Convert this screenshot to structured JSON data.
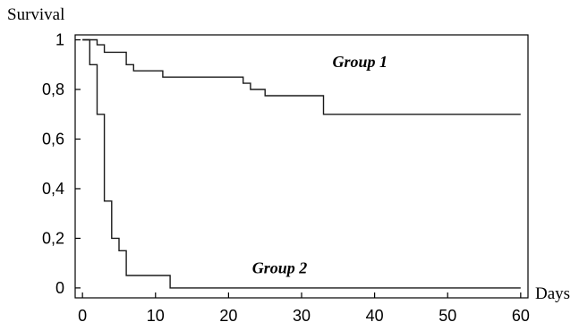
{
  "chart_data": {
    "type": "line",
    "step": true,
    "xlabel": "Days",
    "ylabel": "Survival",
    "xlim": [
      -1,
      61
    ],
    "ylim": [
      -0.04,
      1.02
    ],
    "xticks": [
      0,
      10,
      20,
      30,
      40,
      50,
      60
    ],
    "yticks": [
      0,
      0.2,
      0.4,
      0.6,
      0.8,
      1
    ],
    "ytick_labels": [
      "0",
      "0,2",
      "0,4",
      "0,6",
      "0,8",
      "1"
    ],
    "grid": false,
    "series": [
      {
        "name": "Group 1",
        "label_at": [
          38,
          0.89
        ],
        "x": [
          0,
          2,
          3,
          6,
          7,
          11,
          22,
          23,
          25,
          33,
          60
        ],
        "y": [
          1,
          0.98,
          0.95,
          0.9,
          0.875,
          0.85,
          0.825,
          0.8,
          0.775,
          0.7,
          0.7
        ]
      },
      {
        "name": "Group 2",
        "label_at": [
          27,
          0.06
        ],
        "x": [
          0,
          1,
          2,
          3,
          4,
          5,
          6,
          12,
          60
        ],
        "y": [
          1,
          0.9,
          0.7,
          0.35,
          0.2,
          0.15,
          0.05,
          0,
          0
        ]
      }
    ]
  }
}
